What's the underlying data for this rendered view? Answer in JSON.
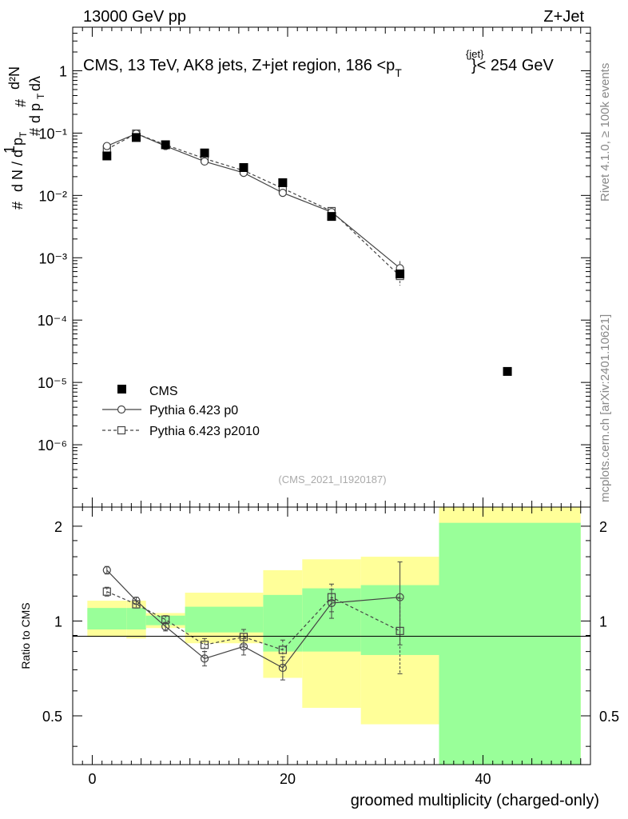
{
  "header": {
    "energy": "13000 GeV pp",
    "process": "Z+Jet",
    "title": "CMS, 13 TeV, AK8 jets, Z+jet region, 186 <p",
    "title_sub": "T",
    "title_sup": "{jet}",
    "title_tail": "}< 254 GeV",
    "analysis": "(CMS_2021_I1920187)",
    "rivet": "Rivet 4.1.0, ≥ 100k events",
    "mcplots": "mcplots.cern.ch [arXiv:2401.10621]"
  },
  "colors": {
    "band_inner": "#99ff99",
    "band_outer": "#ffff99",
    "mc_line": "#444444",
    "title_gray": "#888888"
  },
  "chart_data": [
    {
      "type": "scatter",
      "panel": "main",
      "yscale": "log",
      "xlim": [
        -2,
        51
      ],
      "ylim": [
        1e-07,
        5
      ],
      "ylabel": "# 1 / d N / d p_T # d²N / d p_T dλ",
      "ytick_labels": [
        "1",
        "10⁻¹",
        "10⁻²",
        "10⁻³",
        "10⁻⁴",
        "10⁻⁵",
        "10⁻⁶"
      ],
      "legend": [
        "CMS",
        "Pythia 6.423 p0",
        "Pythia 6.423 p2010"
      ],
      "series": [
        {
          "name": "CMS",
          "marker": "filled-square",
          "x": [
            1.5,
            4.5,
            7.5,
            11.5,
            15.5,
            19.5,
            24.5,
            31.5,
            42.5
          ],
          "y": [
            0.043,
            0.085,
            0.065,
            0.048,
            0.028,
            0.016,
            0.0046,
            0.00055,
            1.5e-05
          ]
        },
        {
          "name": "Pythia 6.423 p0",
          "marker": "open-circle",
          "line": "solid",
          "x": [
            1.5,
            4.5,
            7.5,
            11.5,
            15.5,
            19.5,
            24.5,
            31.5
          ],
          "y": [
            0.062,
            0.098,
            0.062,
            0.035,
            0.023,
            0.011,
            0.0054,
            0.00068
          ],
          "yerr_rel": [
            0.02,
            0.02,
            0.02,
            0.04,
            0.04,
            0.06,
            0.1,
            0.3
          ]
        },
        {
          "name": "Pythia 6.423 p2010",
          "marker": "open-square",
          "line": "dashed",
          "x": [
            1.5,
            4.5,
            7.5,
            11.5,
            15.5,
            19.5,
            24.5,
            31.5
          ],
          "y": [
            0.055,
            0.098,
            0.065,
            0.039,
            0.025,
            0.013,
            0.0056,
            0.00051
          ],
          "yerr_rel": [
            0.02,
            0.02,
            0.02,
            0.04,
            0.04,
            0.06,
            0.1,
            0.3
          ]
        }
      ]
    },
    {
      "type": "scatter",
      "panel": "ratio",
      "yscale": "log",
      "xlim": [
        -2,
        51
      ],
      "ylim": [
        0.35,
        2.3
      ],
      "xlabel": "groomed multiplicity (charged-only)",
      "ylabel": "Ratio to CMS",
      "xticks": [
        0,
        20,
        40
      ],
      "yticks": [
        0.5,
        1,
        2
      ],
      "bands": [
        {
          "x0": -0.5,
          "x1": 3.5,
          "inner": [
            0.94,
            1.1
          ],
          "outer": [
            0.89,
            1.16
          ]
        },
        {
          "x0": 3.5,
          "x1": 5.5,
          "inner": [
            0.94,
            1.1
          ],
          "outer": [
            0.88,
            1.16
          ]
        },
        {
          "x0": 5.5,
          "x1": 9.5,
          "inner": [
            0.97,
            1.04
          ],
          "outer": [
            0.95,
            1.06
          ]
        },
        {
          "x0": 9.5,
          "x1": 17.5,
          "inner": [
            0.92,
            1.11
          ],
          "outer": [
            0.85,
            1.23
          ]
        },
        {
          "x0": 17.5,
          "x1": 21.5,
          "inner": [
            0.8,
            1.21
          ],
          "outer": [
            0.66,
            1.45
          ]
        },
        {
          "x0": 21.5,
          "x1": 27.5,
          "inner": [
            0.8,
            1.27
          ],
          "outer": [
            0.53,
            1.57
          ]
        },
        {
          "x0": 27.5,
          "x1": 35.5,
          "inner": [
            0.78,
            1.3
          ],
          "outer": [
            0.47,
            1.6
          ]
        },
        {
          "x0": 35.5,
          "x1": 50,
          "inner": [
            0.3,
            2.05
          ],
          "outer": [
            0.3,
            2.5
          ]
        }
      ],
      "series": [
        {
          "name": "Pythia 6.423 p0",
          "x": [
            1.5,
            4.5,
            7.5,
            11.5,
            15.5,
            19.5,
            24.5,
            31.5
          ],
          "y": [
            1.45,
            1.16,
            0.96,
            0.76,
            0.83,
            0.71,
            1.14,
            1.19
          ],
          "yerr": [
            0.04,
            0.03,
            0.03,
            0.04,
            0.05,
            0.06,
            0.12,
            0.35
          ]
        },
        {
          "name": "Pythia 6.423 p2010",
          "x": [
            1.5,
            4.5,
            7.5,
            11.5,
            15.5,
            19.5,
            24.5,
            31.5
          ],
          "y": [
            1.24,
            1.13,
            1.01,
            0.84,
            0.89,
            0.81,
            1.19,
            0.93
          ],
          "yerr": [
            0.04,
            0.03,
            0.03,
            0.04,
            0.05,
            0.06,
            0.12,
            0.25
          ]
        }
      ]
    }
  ]
}
